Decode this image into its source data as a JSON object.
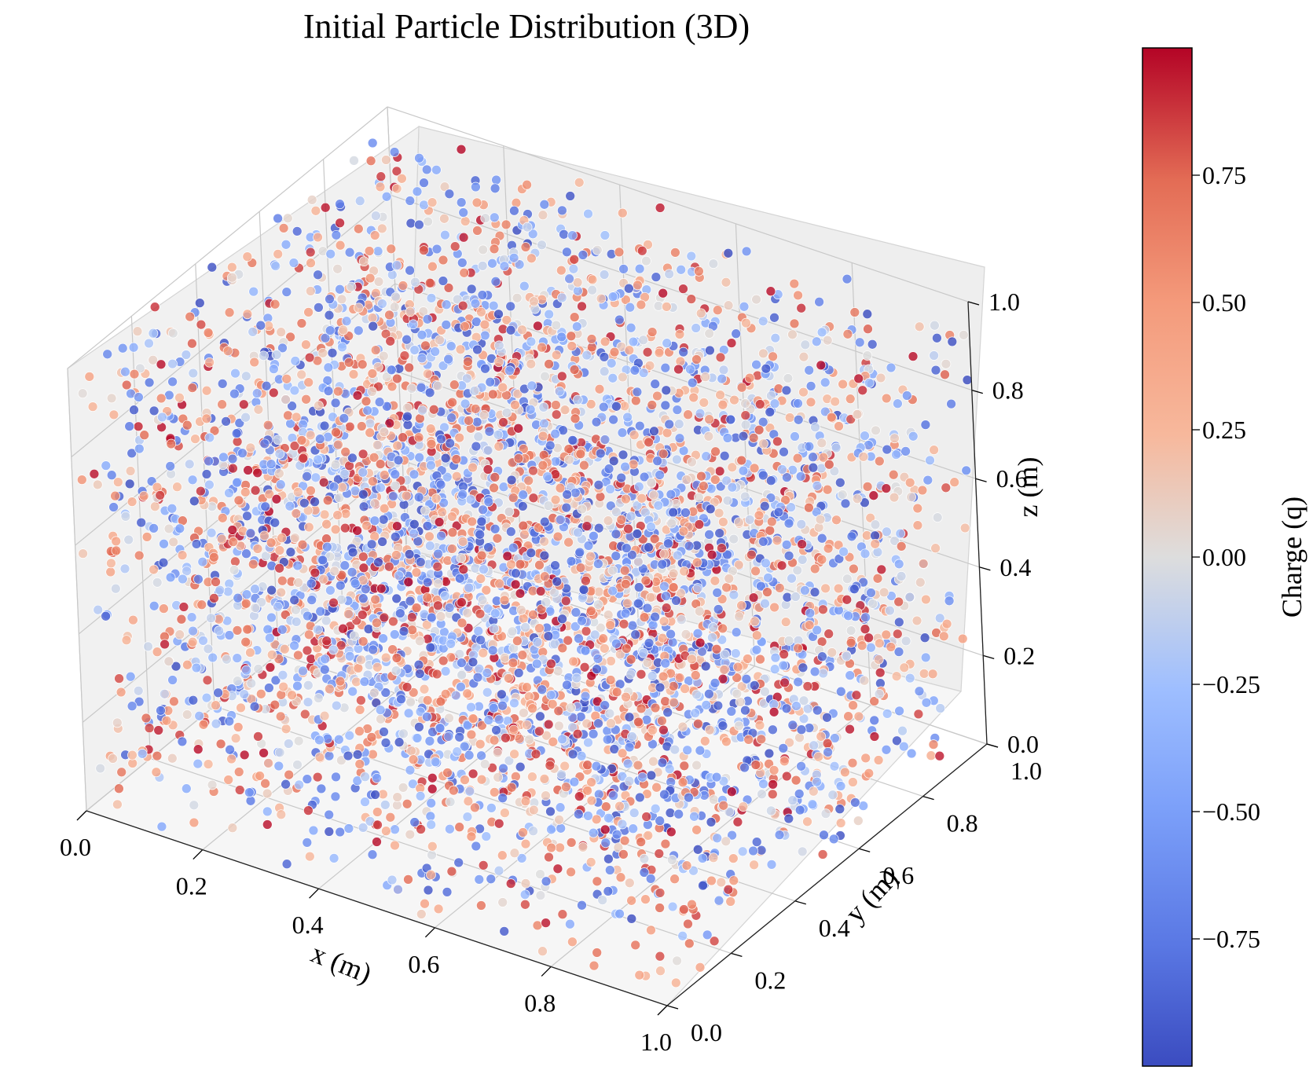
{
  "chart_data": {
    "type": "scatter",
    "title": "Initial Particle Distribution (3D)",
    "projection": "3d",
    "xlabel": "x (m)",
    "ylabel": "y (m)",
    "zlabel": "z (m)",
    "xlim": [
      0.0,
      1.0
    ],
    "ylim": [
      0.0,
      1.0
    ],
    "zlim": [
      0.0,
      1.0
    ],
    "x_ticks": [
      "0.0",
      "0.2",
      "0.4",
      "0.6",
      "0.8",
      "1.0"
    ],
    "y_ticks": [
      "0.0",
      "0.2",
      "0.4",
      "0.6",
      "0.8",
      "1.0"
    ],
    "z_ticks": [
      "0.0",
      "0.2",
      "0.4",
      "0.6",
      "0.8",
      "1.0"
    ],
    "grid": true,
    "color_variable": "charge",
    "colormap": "coolwarm",
    "colorbar": {
      "label": "Charge (q)",
      "range": [
        -1.0,
        1.0
      ],
      "ticks": [
        {
          "value": 0.75,
          "label": "0.75"
        },
        {
          "value": 0.5,
          "label": "0.50"
        },
        {
          "value": 0.25,
          "label": "0.25"
        },
        {
          "value": 0.0,
          "label": "0.00"
        },
        {
          "value": -0.25,
          "label": "−0.25"
        },
        {
          "value": -0.5,
          "label": "−0.50"
        },
        {
          "value": -0.75,
          "label": "−0.75"
        }
      ]
    },
    "colors": {
      "positive": "#b40426",
      "neutral": "#dddddd",
      "negative": "#3b4cc0",
      "pane": "#f2f2f2",
      "grid": "#c8c8c8"
    },
    "distribution": "uniform random positions in the unit cube",
    "points": [
      {
        "x": 0.05,
        "y": 0.12,
        "z": 0.82,
        "q": 0.91
      },
      {
        "x": 0.12,
        "y": 0.85,
        "z": 0.33,
        "q": -0.72
      },
      {
        "x": 0.21,
        "y": 0.44,
        "z": 0.57,
        "q": 0.15
      },
      {
        "x": 0.28,
        "y": 0.07,
        "z": 0.19,
        "q": -0.34
      },
      {
        "x": 0.33,
        "y": 0.61,
        "z": 0.92,
        "q": 0.58
      },
      {
        "x": 0.39,
        "y": 0.29,
        "z": 0.48,
        "q": -0.93
      },
      {
        "x": 0.44,
        "y": 0.96,
        "z": 0.11,
        "q": 0.27
      },
      {
        "x": 0.51,
        "y": 0.38,
        "z": 0.74,
        "q": -0.12
      },
      {
        "x": 0.57,
        "y": 0.73,
        "z": 0.41,
        "q": 0.83
      },
      {
        "x": 0.62,
        "y": 0.15,
        "z": 0.66,
        "q": -0.55
      },
      {
        "x": 0.68,
        "y": 0.52,
        "z": 0.03,
        "q": 0.44
      },
      {
        "x": 0.73,
        "y": 0.88,
        "z": 0.87,
        "q": -0.21
      },
      {
        "x": 0.79,
        "y": 0.24,
        "z": 0.28,
        "q": 0.69
      },
      {
        "x": 0.84,
        "y": 0.67,
        "z": 0.59,
        "q": -0.81
      },
      {
        "x": 0.91,
        "y": 0.03,
        "z": 0.95,
        "q": 0.06
      },
      {
        "x": 0.96,
        "y": 0.46,
        "z": 0.15,
        "q": -0.47
      },
      {
        "x": 0.08,
        "y": 0.58,
        "z": 0.06,
        "q": 0.38
      },
      {
        "x": 0.17,
        "y": 0.19,
        "z": 0.69,
        "q": -0.66
      },
      {
        "x": 0.26,
        "y": 0.77,
        "z": 0.25,
        "q": 0.97
      },
      {
        "x": 0.35,
        "y": 0.93,
        "z": 0.79,
        "q": -0.08
      },
      {
        "x": 0.47,
        "y": 0.11,
        "z": 0.35,
        "q": 0.52
      },
      {
        "x": 0.55,
        "y": 0.55,
        "z": 0.98,
        "q": -0.39
      },
      {
        "x": 0.64,
        "y": 0.32,
        "z": 0.14,
        "q": 0.77
      },
      {
        "x": 0.76,
        "y": 0.81,
        "z": 0.52,
        "q": -0.29
      },
      {
        "x": 0.87,
        "y": 0.36,
        "z": 0.83,
        "q": 0.21
      },
      {
        "x": 0.94,
        "y": 0.71,
        "z": 0.37,
        "q": -0.88
      },
      {
        "x": 0.02,
        "y": 0.34,
        "z": 0.44,
        "q": 0.63
      },
      {
        "x": 0.99,
        "y": 0.99,
        "z": 0.62,
        "q": -0.58
      },
      {
        "x": 0.42,
        "y": 0.48,
        "z": 0.21,
        "q": 0.09
      },
      {
        "x": 0.59,
        "y": 0.02,
        "z": 0.88,
        "q": -0.97
      }
    ]
  }
}
